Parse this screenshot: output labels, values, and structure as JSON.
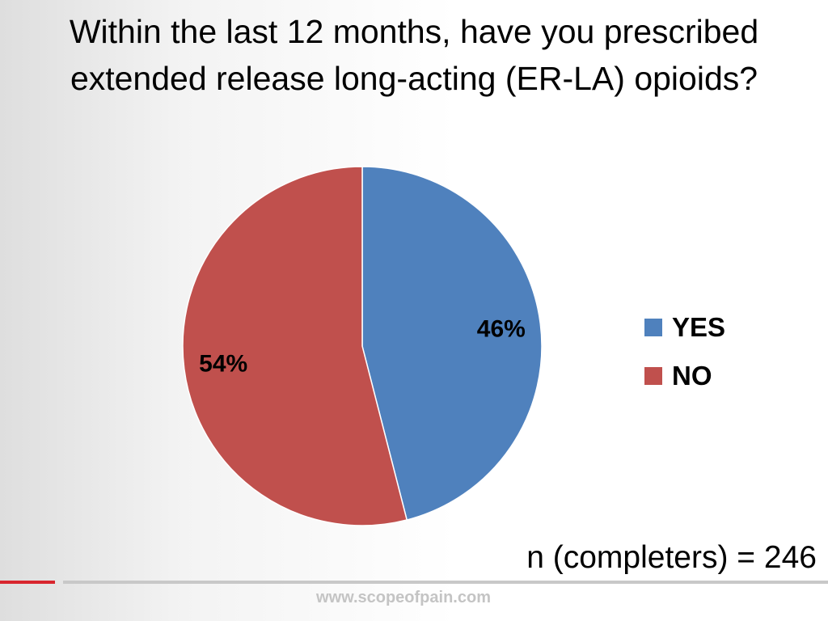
{
  "chart_data": {
    "type": "pie",
    "title_lines": [
      "Within the last 12 months, have you prescribed",
      "extended release long-acting (ER-LA) opioids?"
    ],
    "categories": [
      "YES",
      "NO"
    ],
    "values": [
      46,
      54
    ],
    "data_labels": [
      "46%",
      "54%"
    ],
    "colors": [
      "#4f81bd",
      "#c0504d"
    ],
    "legend_position": "right"
  },
  "annotation": "n (completers) = 246",
  "footer": {
    "url": "www.scopeofpain.com"
  }
}
